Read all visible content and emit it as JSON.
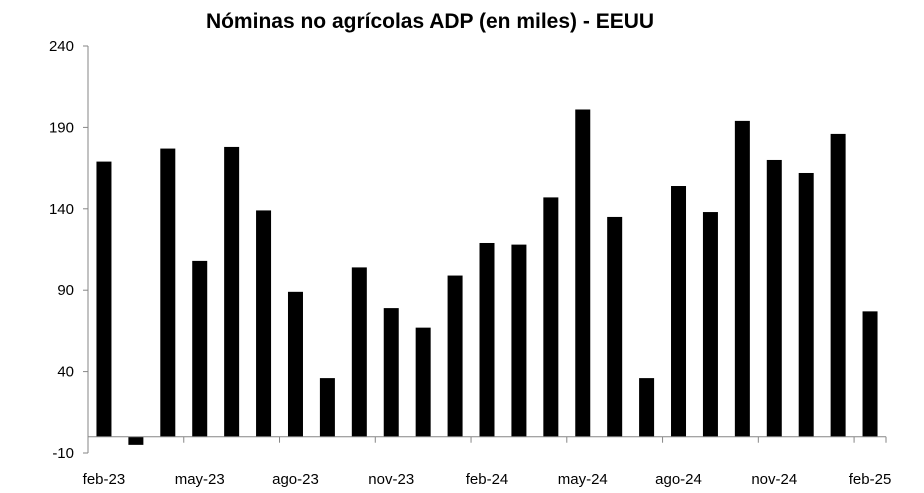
{
  "chart_data": {
    "type": "bar",
    "title": "Nóminas no agrícolas ADP (en miles) - EEUU",
    "xlabel": "",
    "ylabel": "",
    "ylim": [
      -10,
      240
    ],
    "yticks": [
      -10,
      40,
      90,
      140,
      190,
      240
    ],
    "x_tick_labels": [
      "feb-23",
      "may-23",
      "ago-23",
      "nov-23",
      "feb-24",
      "may-24",
      "ago-24",
      "nov-24",
      "feb-25"
    ],
    "categories": [
      "feb-23",
      "mar-23",
      "abr-23",
      "may-23",
      "jun-23",
      "jul-23",
      "ago-23",
      "sep-23",
      "oct-23",
      "nov-23",
      "dic-23",
      "ene-24",
      "feb-24",
      "mar-24",
      "abr-24",
      "may-24",
      "jun-24",
      "jul-24",
      "ago-24",
      "sep-24",
      "oct-24",
      "nov-24",
      "dic-24",
      "ene-25",
      "feb-25"
    ],
    "values": [
      169,
      -5,
      177,
      108,
      178,
      139,
      89,
      36,
      104,
      79,
      67,
      99,
      119,
      118,
      147,
      201,
      135,
      36,
      154,
      138,
      194,
      170,
      162,
      186,
      77
    ],
    "bar_color": "#000000",
    "grid": false,
    "legend": "none"
  }
}
